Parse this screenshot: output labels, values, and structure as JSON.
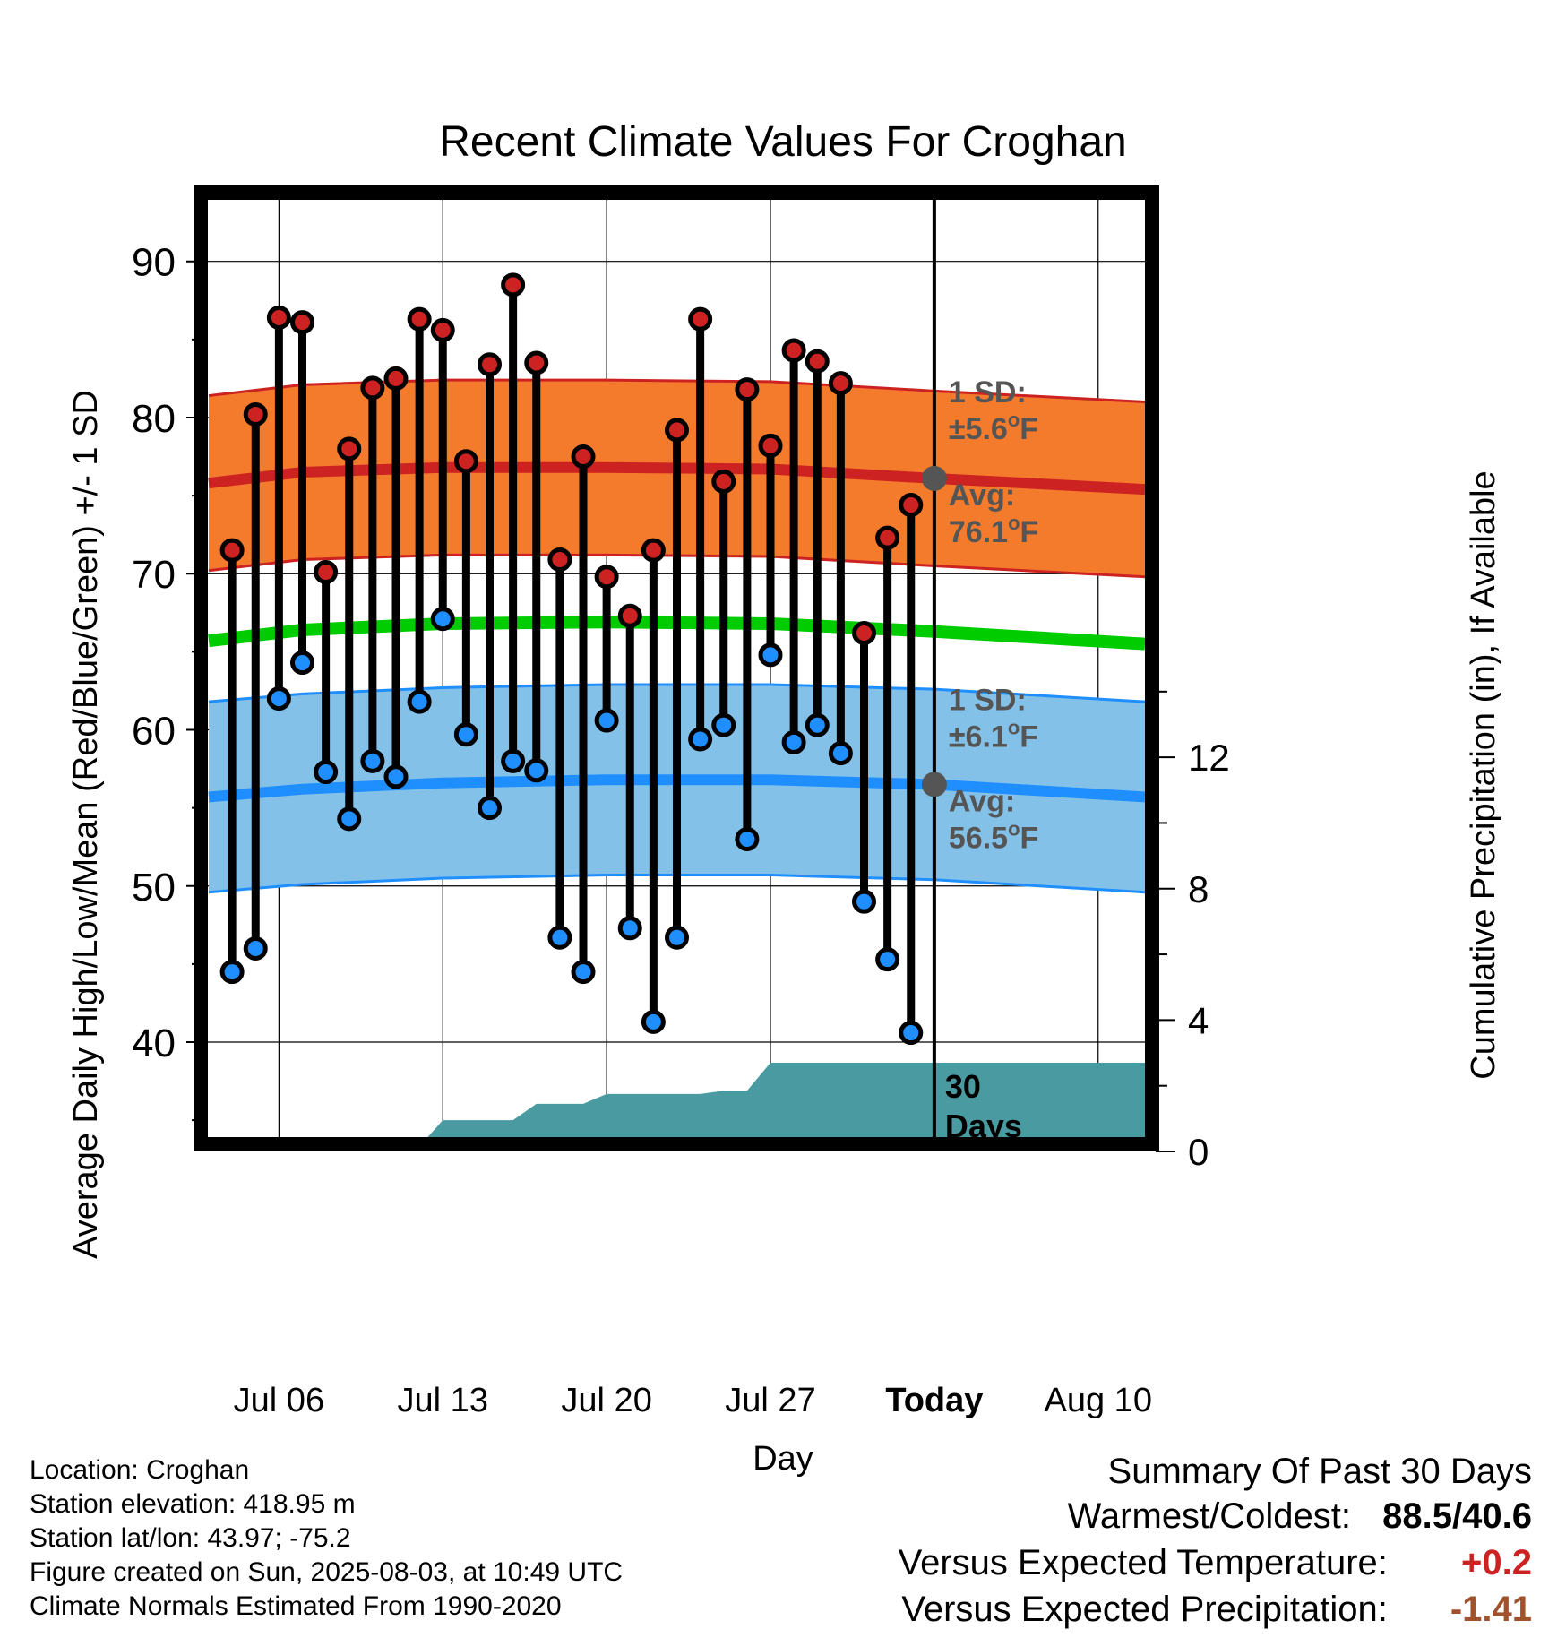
{
  "title": "Recent Climate Values For Croghan",
  "chart_data": {
    "type": "line",
    "title": "Recent Climate Values For Croghan",
    "xlabel": "Day",
    "ylabel": "Average Daily High/Low/Mean (Red/Blue/Green) +/- 1 SD",
    "y2label": "Cumulative Precipitation (in), If Available",
    "ylim": [
      33,
      94
    ],
    "y2lim": [
      0,
      29
    ],
    "x_ticks": [
      "Jul 06",
      "Jul 13",
      "Jul 20",
      "Jul 27",
      "Today",
      "Aug 10"
    ],
    "y_ticks": [
      40,
      50,
      60,
      70,
      80,
      90
    ],
    "y2_ticks": [
      0,
      4,
      8,
      12
    ],
    "today_label": "Today",
    "daily_dates": [
      "Jul 04",
      "Jul 05",
      "Jul 06",
      "Jul 07",
      "Jul 08",
      "Jul 09",
      "Jul 10",
      "Jul 11",
      "Jul 12",
      "Jul 13",
      "Jul 14",
      "Jul 15",
      "Jul 16",
      "Jul 17",
      "Jul 18",
      "Jul 19",
      "Jul 20",
      "Jul 21",
      "Jul 22",
      "Jul 23",
      "Jul 24",
      "Jul 25",
      "Jul 26",
      "Jul 27",
      "Jul 28",
      "Jul 29",
      "Jul 30",
      "Jul 31",
      "Aug 01",
      "Aug 02"
    ],
    "daily_high": [
      71.5,
      80.2,
      86.4,
      86.1,
      70.1,
      78.0,
      81.9,
      82.5,
      86.3,
      85.6,
      77.2,
      83.4,
      88.5,
      83.5,
      70.9,
      77.5,
      69.8,
      67.3,
      71.5,
      79.2,
      86.3,
      75.9,
      81.8,
      78.2,
      84.3,
      83.6,
      82.2,
      66.2,
      72.3,
      74.4
    ],
    "daily_low": [
      44.5,
      46.0,
      62.0,
      64.3,
      57.3,
      54.3,
      58.0,
      57.0,
      61.8,
      67.1,
      59.7,
      55.0,
      58.0,
      57.4,
      46.7,
      44.5,
      60.6,
      47.3,
      41.3,
      46.7,
      59.4,
      60.3,
      53.0,
      64.8,
      59.2,
      60.3,
      58.5,
      49.0,
      45.3,
      40.6
    ],
    "normal_dates": [
      "Jul 03",
      "Jul 07",
      "Jul 13",
      "Jul 20",
      "Jul 27",
      "Aug 03",
      "Aug 12"
    ],
    "normal_high": [
      75.8,
      76.5,
      76.8,
      76.8,
      76.7,
      76.1,
      75.4
    ],
    "normal_high_sd": 5.6,
    "normal_low": [
      55.7,
      56.2,
      56.6,
      56.8,
      56.8,
      56.5,
      55.7
    ],
    "normal_low_sd": 6.1,
    "normal_mean": [
      65.7,
      66.4,
      66.8,
      66.9,
      66.8,
      66.3,
      65.5
    ],
    "precip_dates": [
      "Jul 03",
      "Jul 04",
      "Jul 06",
      "Jul 07",
      "Jul 12",
      "Jul 13",
      "Jul 16",
      "Jul 17",
      "Jul 19",
      "Jul 20",
      "Jul 24",
      "Jul 25",
      "Jul 26",
      "Jul 27",
      "Aug 03",
      "Aug 12"
    ],
    "precip_cumulative": [
      0.0,
      0.0,
      0.05,
      0.15,
      0.15,
      0.95,
      0.95,
      1.45,
      1.45,
      1.75,
      1.75,
      1.85,
      1.85,
      2.7,
      2.7,
      2.7
    ],
    "precip_note": "30 Days",
    "grid": true,
    "colors": {
      "high": "#cc2222",
      "low": "#1f8fff",
      "mean": "#00cc00",
      "high_band": "#f47a2c",
      "low_band": "#83c1e8",
      "precip": "#4a9aa2",
      "annotation": "#555555",
      "warm": "#cc2222",
      "dry": "#a0522d"
    },
    "annotations": {
      "high_sd_label": "1 SD:",
      "high_sd_value": "±5.6",
      "high_avg_label": "Avg:",
      "high_avg_value": "76.1",
      "low_sd_label": "1 SD:",
      "low_sd_value": "±6.1",
      "low_avg_label": "Avg:",
      "low_avg_value": "56.5",
      "unit_sup": "o",
      "unit_letter": "F"
    }
  },
  "info": {
    "location": "Location: Croghan",
    "elevation": "Station elevation: 418.95 m",
    "latlon": "Station lat/lon: 43.97; -75.2",
    "created": "Figure created on Sun, 2025-08-03, at 10:49 UTC",
    "normals": "Climate Normals Estimated From 1990-2020"
  },
  "summary": {
    "heading": "Summary Of Past 30 Days",
    "warmest_label": "Warmest/Coldest:",
    "warmest_value": "88.5",
    "sep": "/",
    "coldest_value": "40.6",
    "temp_label": "Versus Expected Temperature:",
    "temp_value": "+0.2",
    "precip_label": "Versus Expected Precipitation:",
    "precip_value": "-1.41"
  }
}
